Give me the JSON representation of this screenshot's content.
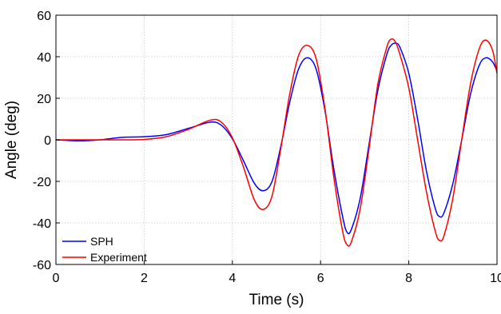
{
  "chart_data": {
    "type": "line",
    "title": "",
    "xlabel": "Time (s)",
    "ylabel": "Angle (deg)",
    "xlim": [
      0,
      10
    ],
    "ylim": [
      -60,
      60
    ],
    "xticks": [
      0,
      2,
      4,
      6,
      8,
      10
    ],
    "yticks": [
      -60,
      -40,
      -20,
      0,
      20,
      40,
      60
    ],
    "grid": true,
    "legend_position": "bottom-left",
    "series": [
      {
        "name": "SPH",
        "color": "#0000ff",
        "x": [
          0,
          0.5,
          1.0,
          1.5,
          2.0,
          2.5,
          3.0,
          3.5,
          3.75,
          4.0,
          4.25,
          4.5,
          4.7,
          4.9,
          5.1,
          5.3,
          5.5,
          5.7,
          5.9,
          6.1,
          6.3,
          6.5,
          6.6,
          6.7,
          6.9,
          7.1,
          7.3,
          7.5,
          7.6,
          7.7,
          7.8,
          8.0,
          8.2,
          8.4,
          8.6,
          8.7,
          8.8,
          9.0,
          9.2,
          9.4,
          9.6,
          9.75,
          9.9,
          10.0
        ],
        "y": [
          0,
          -0.5,
          0,
          1.2,
          1.5,
          2.5,
          5.5,
          8.5,
          7.0,
          0.5,
          -10.0,
          -21.0,
          -24.5,
          -20.0,
          -3.0,
          18.0,
          34.0,
          39.5,
          34.0,
          14.0,
          -14.0,
          -37.0,
          -44.5,
          -43.0,
          -28.0,
          -2.0,
          24.0,
          41.0,
          45.5,
          46.5,
          44.5,
          32.0,
          10.0,
          -15.0,
          -33.0,
          -37.0,
          -35.0,
          -21.0,
          0.0,
          22.0,
          36.0,
          39.5,
          37.5,
          33.0
        ]
      },
      {
        "name": "Experiment",
        "color": "#ff0000",
        "x": [
          0,
          0.5,
          1.0,
          1.5,
          2.0,
          2.5,
          3.0,
          3.5,
          3.75,
          4.0,
          4.25,
          4.5,
          4.7,
          4.9,
          5.1,
          5.3,
          5.5,
          5.7,
          5.9,
          6.1,
          6.3,
          6.5,
          6.6,
          6.7,
          6.9,
          7.1,
          7.3,
          7.5,
          7.6,
          7.7,
          7.8,
          8.0,
          8.2,
          8.4,
          8.6,
          8.7,
          8.8,
          9.0,
          9.2,
          9.4,
          9.6,
          9.75,
          9.9,
          10.0
        ],
        "y": [
          0,
          0,
          0,
          0,
          0.2,
          1.5,
          5.0,
          9.5,
          8.5,
          1.0,
          -13.0,
          -29.0,
          -33.5,
          -27.0,
          -4.0,
          22.0,
          40.5,
          45.5,
          39.0,
          15.0,
          -18.0,
          -44.0,
          -50.5,
          -49.0,
          -33.0,
          -4.0,
          27.0,
          44.5,
          48.5,
          47.0,
          41.0,
          25.0,
          0.0,
          -25.0,
          -44.0,
          -48.5,
          -46.0,
          -28.0,
          0.0,
          27.0,
          44.0,
          48.0,
          43.0,
          32.0
        ]
      }
    ]
  }
}
